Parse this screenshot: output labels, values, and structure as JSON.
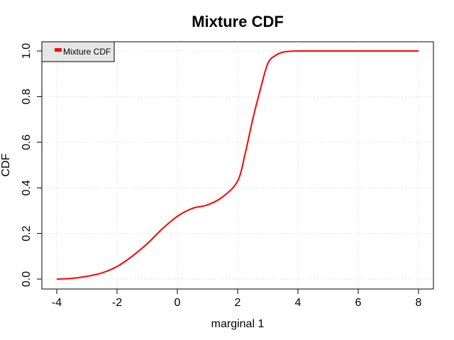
{
  "chart_data": {
    "type": "line",
    "title": "Mixture CDF",
    "xlabel": "marginal 1",
    "ylabel": "CDF",
    "xlim": [
      -4,
      8
    ],
    "ylim": [
      0,
      1
    ],
    "xticks": [
      "-4",
      "-2",
      "0",
      "2",
      "4",
      "6",
      "8"
    ],
    "yticks": [
      "0.0",
      "0.2",
      "0.4",
      "0.6",
      "0.8",
      "1.0"
    ],
    "grid": true,
    "legend_position": "top-left",
    "series": [
      {
        "name": "Mixture CDF",
        "color": "#ff0000",
        "x": [
          -4,
          -3.5,
          -3,
          -2.5,
          -2,
          -1.5,
          -1,
          -0.5,
          0,
          0.5,
          1,
          1.5,
          2,
          2.25,
          2.5,
          2.75,
          3,
          3.25,
          3.5,
          3.75,
          4,
          5,
          6,
          7,
          8
        ],
        "y": [
          0.0,
          0.003,
          0.012,
          0.027,
          0.055,
          0.1,
          0.155,
          0.22,
          0.275,
          0.31,
          0.325,
          0.36,
          0.43,
          0.55,
          0.7,
          0.83,
          0.945,
          0.98,
          0.995,
          0.999,
          1.0,
          1.0,
          1.0,
          1.0,
          1.0
        ]
      }
    ]
  }
}
